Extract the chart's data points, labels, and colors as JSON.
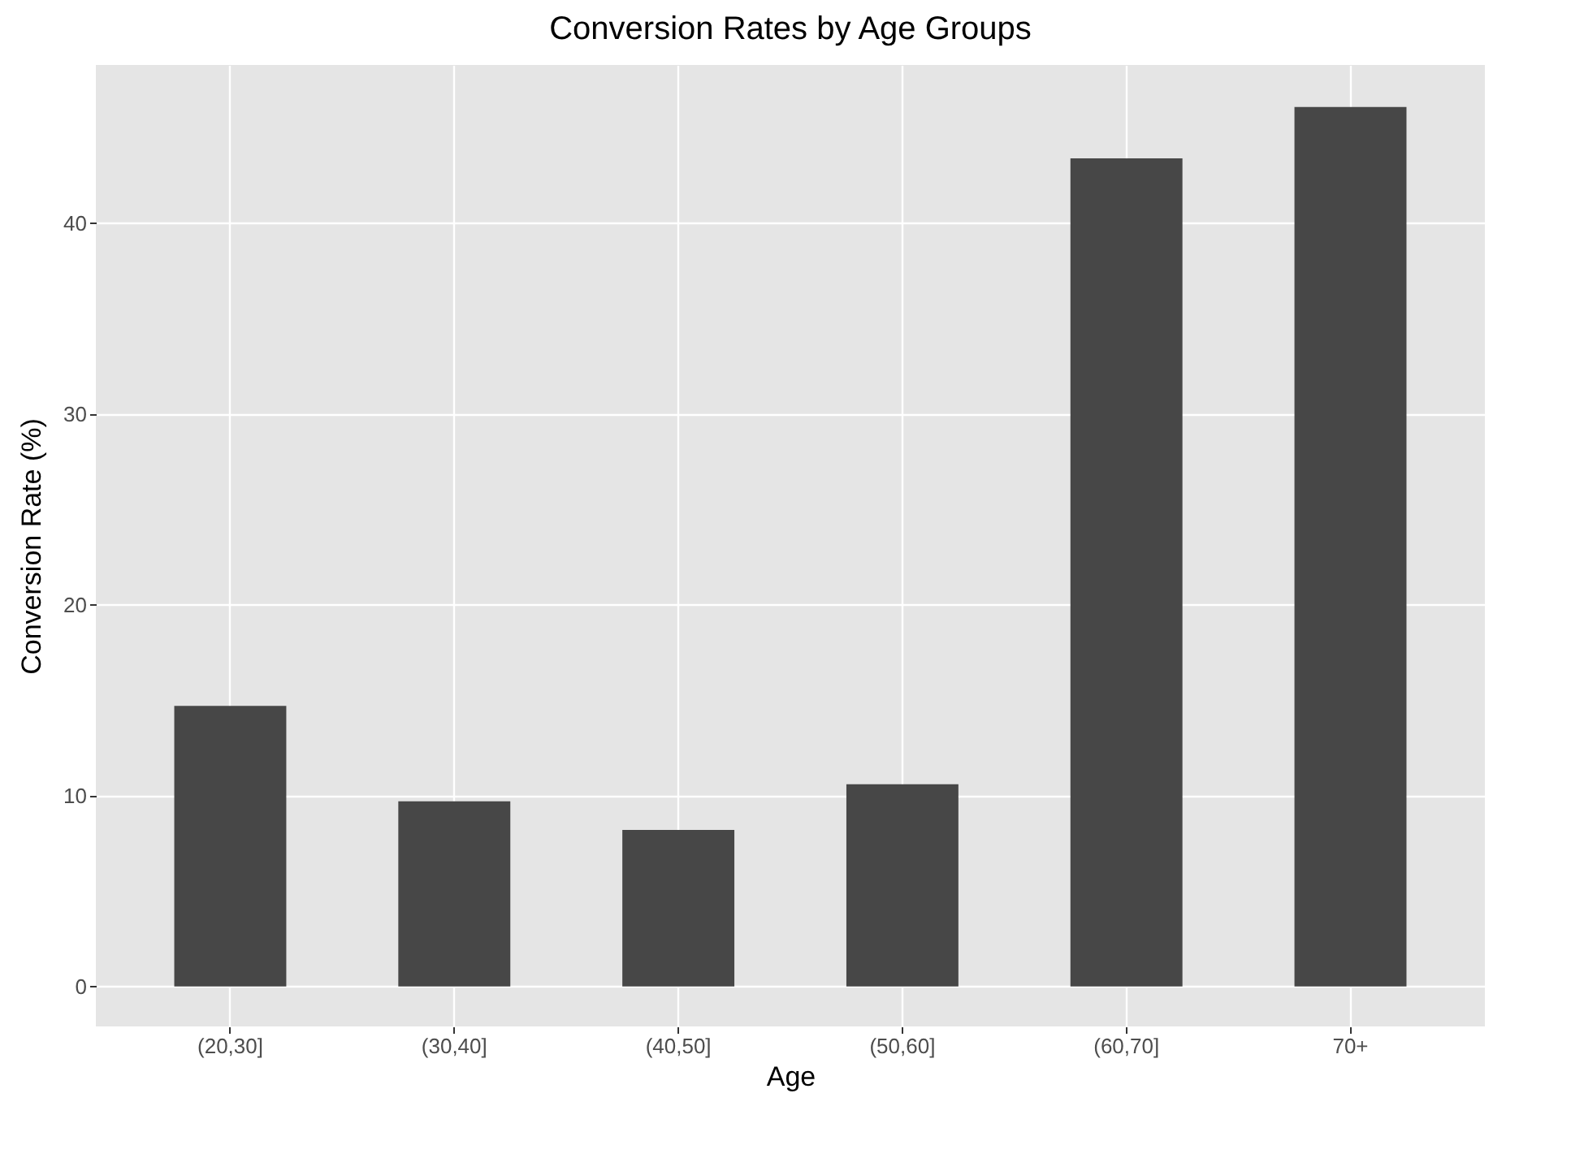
{
  "chart_data": {
    "type": "bar",
    "title": "Conversion Rates by Age Groups",
    "xlabel": "Age",
    "ylabel": "Conversion Rate (%)",
    "categories": [
      "(20,30]",
      "(30,40]",
      "(40,50]",
      "(50,60]",
      "(60,70]",
      "70+"
    ],
    "values": [
      14.7,
      9.7,
      8.2,
      10.6,
      43.4,
      46.1
    ],
    "color": "#474747",
    "ylim": [
      -2.1,
      48.3
    ],
    "yticks": [
      0,
      10,
      20,
      30,
      40
    ],
    "grid": true
  }
}
